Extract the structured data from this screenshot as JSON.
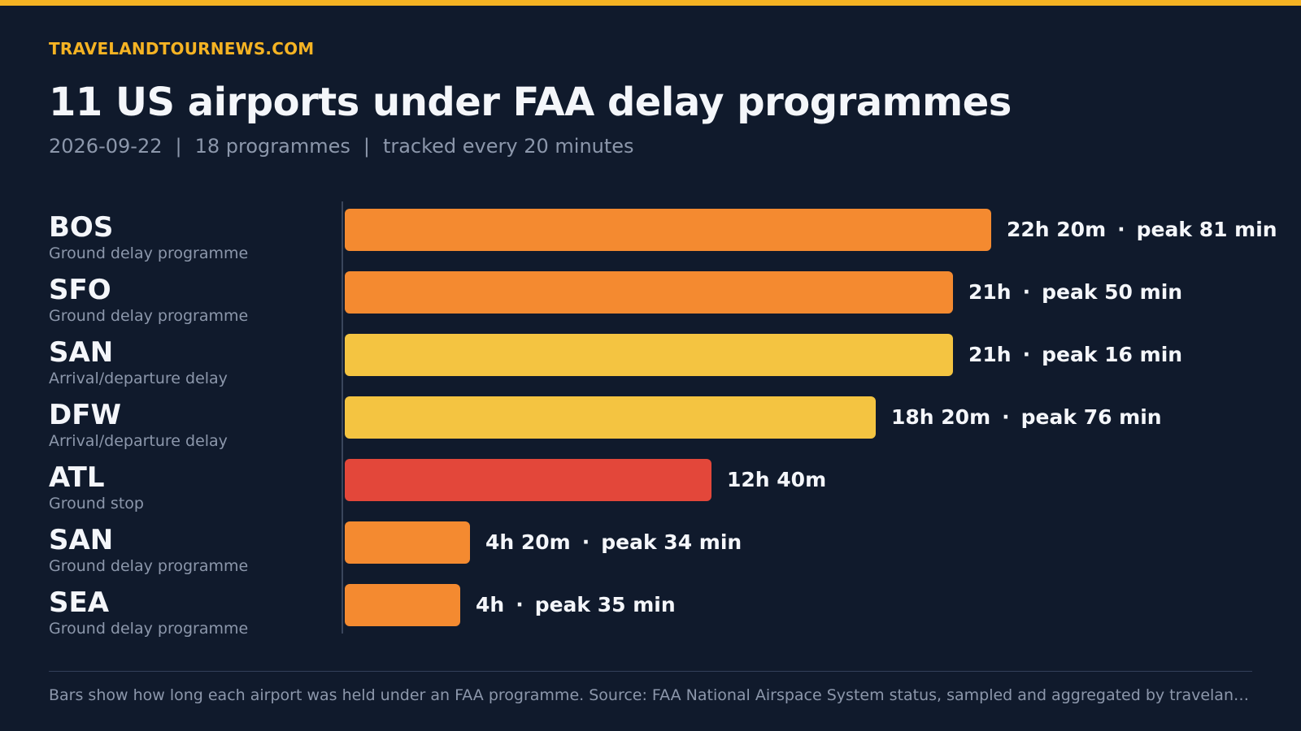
{
  "brand": "TRAVELANDTOURNEWS.COM",
  "title": "11 US airports under FAA delay programmes",
  "subtitle": {
    "date": "2026-09-22",
    "programmes": "18 programmes",
    "frequency": "tracked every 20 minutes",
    "separator": "|"
  },
  "colors": {
    "background": "#101a2c",
    "accent": "#f5b323",
    "ground_delay_programme": "#f48a30",
    "arrival_departure_delay": "#f4c441",
    "ground_stop": "#e3473a"
  },
  "chart_data": {
    "type": "bar",
    "orientation": "horizontal",
    "unit": "minutes",
    "xlim": [
      0,
      1340
    ],
    "grid": false,
    "categories": [
      "BOS",
      "SFO",
      "SAN",
      "DFW",
      "ATL",
      "SAN",
      "SEA"
    ],
    "programme_types": [
      "Ground delay programme",
      "Ground delay programme",
      "Arrival/departure delay",
      "Arrival/departure delay",
      "Ground stop",
      "Ground delay programme",
      "Ground delay programme"
    ],
    "values": [
      1340,
      1260,
      1260,
      1100,
      760,
      260,
      240
    ],
    "duration_labels": [
      "22h 20m",
      "21h",
      "21h",
      "18h 20m",
      "12h 40m",
      "4h 20m",
      "4h"
    ],
    "peak_labels": [
      "peak 81 min",
      "peak 50 min",
      "peak 16 min",
      "peak 76 min",
      "",
      "peak 34 min",
      "peak 35 min"
    ],
    "peak_minutes": [
      81,
      50,
      16,
      76,
      null,
      34,
      35
    ]
  },
  "footnote": "Bars show how long each airport was held under an FAA programme. Source: FAA National Airspace System status, sampled and aggregated by travelandtour…"
}
